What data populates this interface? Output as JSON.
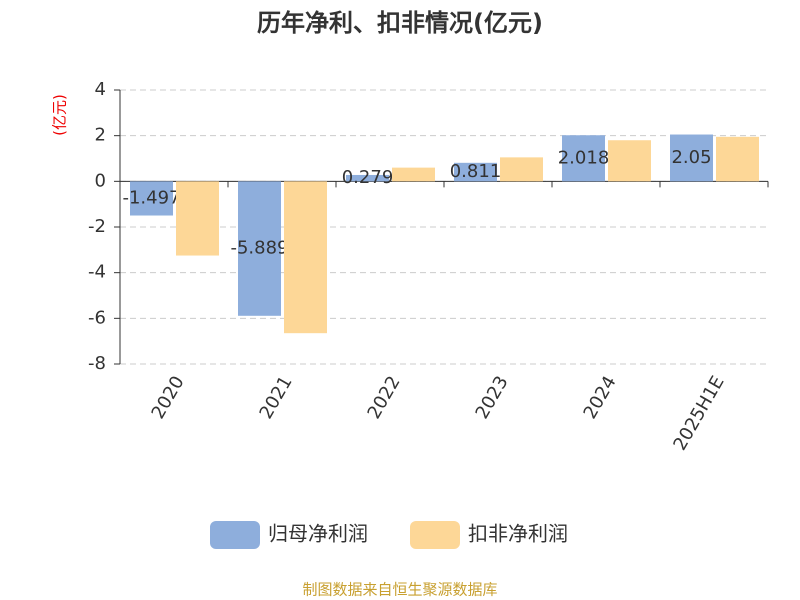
{
  "chart_data": {
    "type": "bar",
    "title": "历年净利、扣非情况(亿元)",
    "y_label": "(亿元)",
    "categories": [
      "2020",
      "2021",
      "2022",
      "2023",
      "2024",
      "2025H1E"
    ],
    "series": [
      {
        "name": "归母净利润",
        "color": "#8eaedc",
        "values": [
          -1.497,
          -5.889,
          0.279,
          0.811,
          2.018,
          2.05
        ]
      },
      {
        "name": "扣非净利润",
        "color": "#fdd797",
        "values": [
          -3.25,
          -6.65,
          0.6,
          1.05,
          1.8,
          1.95
        ]
      }
    ],
    "ylim": [
      -8,
      4
    ],
    "yticks": [
      -8,
      -6,
      -4,
      -2,
      0,
      2,
      4
    ],
    "grid": true,
    "source": "制图数据来自恒生聚源数据库"
  }
}
